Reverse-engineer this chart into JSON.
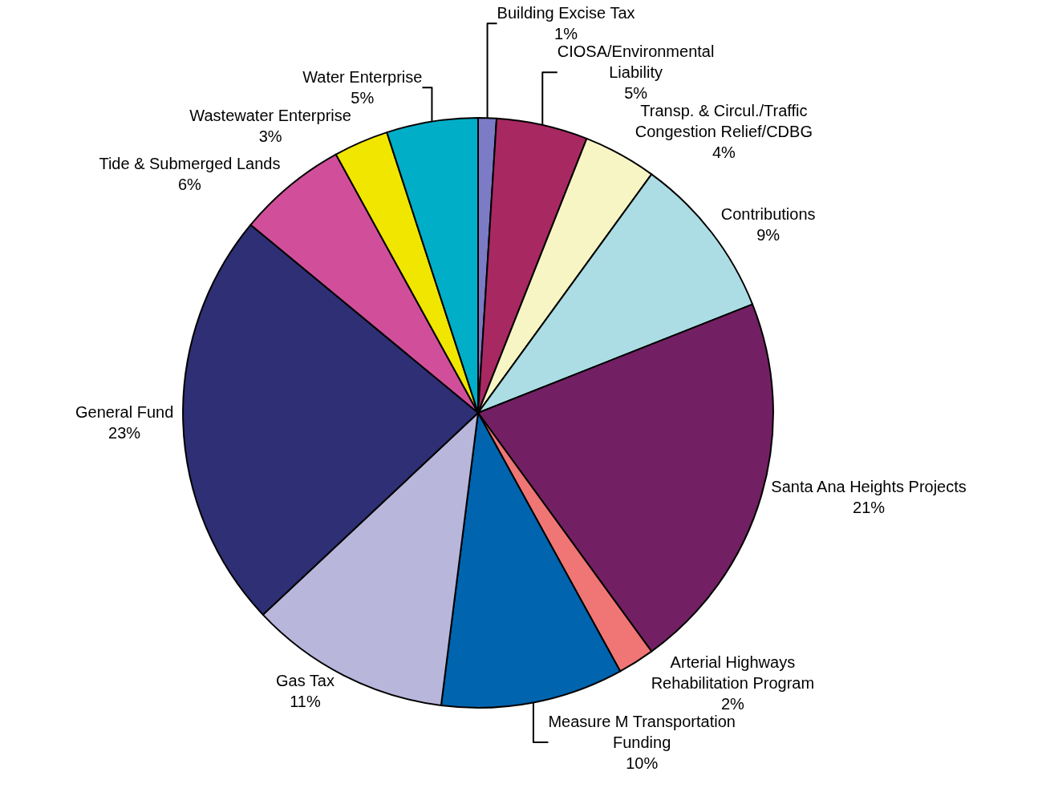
{
  "chart_data": {
    "type": "pie",
    "categories": [
      "Building Excise Tax",
      "CIOSA/Environmental Liability",
      "Transp. & Circul./Traffic Congestion Relief/CDBG",
      "Contributions",
      "Santa Ana Heights Projects",
      "Arterial Highways Rehabilitation Program",
      "Measure M Transportation Funding",
      "Gas Tax",
      "General Fund",
      "Tide & Submerged Lands",
      "Wastewater Enterprise",
      "Water Enterprise"
    ],
    "values": [
      1,
      5,
      4,
      9,
      21,
      2,
      10,
      11,
      23,
      6,
      3,
      5
    ],
    "value_labels": [
      "1%",
      "5%",
      "4%",
      "9%",
      "21%",
      "2%",
      "10%",
      "11%",
      "23%",
      "6%",
      "3%",
      "5%"
    ],
    "colors": [
      "#7b7bc6",
      "#a82862",
      "#f8f5c4",
      "#acdde4",
      "#722063",
      "#f07575",
      "#0064ae",
      "#b8b6da",
      "#2f2f76",
      "#d14f9a",
      "#f0e600",
      "#00aec8"
    ],
    "legend": false
  }
}
